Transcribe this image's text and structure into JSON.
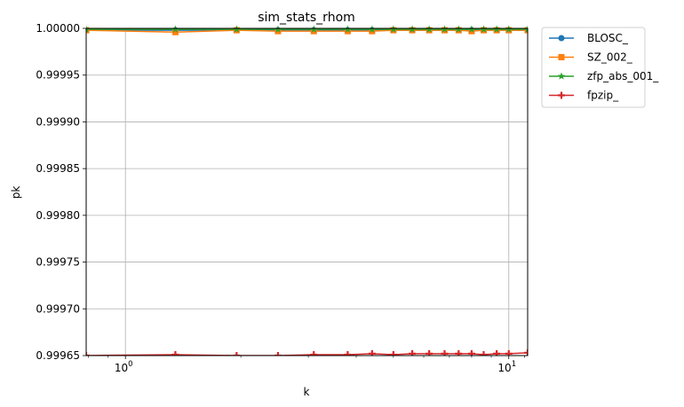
{
  "chart_data": {
    "type": "line",
    "title": "sim_stats_rhom",
    "xlabel": "k",
    "ylabel": "pk",
    "xscale": "log",
    "xlim": [
      0.79,
      11.2
    ],
    "ylim": [
      0.99965,
      1.0
    ],
    "grid": true,
    "legend_position": "outside-upper-right",
    "x_ticks": [
      {
        "value": 1,
        "label": "10",
        "exp": "0"
      },
      {
        "value": 10,
        "label": "10",
        "exp": "1"
      }
    ],
    "y_ticks": [
      {
        "value": 0.99965,
        "label": "0.99965"
      },
      {
        "value": 0.9997,
        "label": "0.99970"
      },
      {
        "value": 0.99975,
        "label": "0.99975"
      },
      {
        "value": 0.9998,
        "label": "0.99980"
      },
      {
        "value": 0.99985,
        "label": "0.99985"
      },
      {
        "value": 0.9999,
        "label": "0.99990"
      },
      {
        "value": 0.99995,
        "label": "0.99995"
      },
      {
        "value": 1.0,
        "label": "1.00000"
      }
    ],
    "x": [
      0.79,
      1.35,
      1.95,
      2.5,
      3.1,
      3.8,
      4.4,
      5.0,
      5.6,
      6.2,
      6.8,
      7.4,
      8.0,
      8.6,
      9.3,
      10.0,
      11.2
    ],
    "series": [
      {
        "name": "BLOSC_",
        "color": "#1f77b4",
        "marker": "circle",
        "values": [
          0.999998,
          0.999998,
          0.999998,
          0.999998,
          0.999998,
          0.999998,
          0.999998,
          0.999998,
          0.999998,
          0.999998,
          0.999998,
          0.999998,
          0.999998,
          0.999998,
          0.999998,
          0.999998,
          0.999998
        ]
      },
      {
        "name": "SZ_002_",
        "color": "#ff7f0e",
        "marker": "square",
        "values": [
          0.999998,
          0.999996,
          0.999998,
          0.999997,
          0.999997,
          0.999997,
          0.999997,
          0.999998,
          0.999998,
          0.999998,
          0.999998,
          0.999998,
          0.999997,
          0.999998,
          0.999998,
          0.999998,
          0.999998
        ]
      },
      {
        "name": "zfp_abs_001_",
        "color": "#2ca02c",
        "marker": "star",
        "values": [
          0.999999,
          0.999999,
          0.999999,
          0.999999,
          0.999999,
          0.999999,
          0.999999,
          0.999999,
          0.999999,
          0.999999,
          0.999999,
          0.999999,
          0.999999,
          0.999999,
          0.999999,
          0.999999,
          0.999999
        ]
      },
      {
        "name": "fpzip_",
        "color": "#d62728",
        "marker": "plus",
        "values": [
          0.99965,
          0.999651,
          0.99965,
          0.99965,
          0.999651,
          0.999651,
          0.999652,
          0.999651,
          0.999652,
          0.999652,
          0.999652,
          0.999652,
          0.999652,
          0.999651,
          0.999652,
          0.999652,
          0.999653
        ]
      }
    ]
  }
}
